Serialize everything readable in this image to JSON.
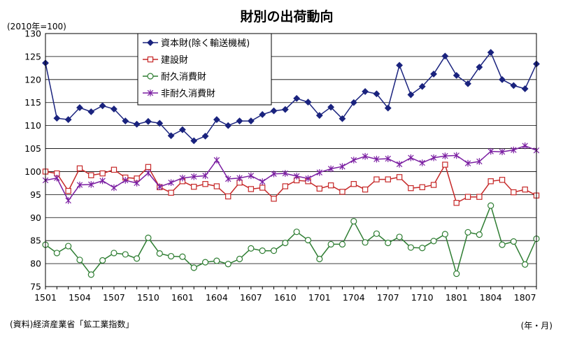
{
  "header": {
    "unit": "(2010年=100)",
    "title": "財別の出荷動向"
  },
  "footer": {
    "source": "(資料)経済産業省「鉱工業指数」",
    "axis_unit": "(年・月)"
  },
  "colors": {
    "capital": "#1a237e",
    "construction": "#c62828",
    "durable": "#2e7d32",
    "nondurable": "#7b1fa2",
    "grid": "#000000"
  },
  "chart_data": {
    "type": "line",
    "title": "財別の出荷動向",
    "ylabel": "(2010年=100)",
    "xlabel": "(年・月)",
    "ylim": [
      75,
      130
    ],
    "yticks": [
      75,
      80,
      85,
      90,
      95,
      100,
      105,
      110,
      115,
      120,
      125,
      130
    ],
    "grid": true,
    "legend_position": "top-center",
    "x_tick_labels": [
      "1501",
      "1504",
      "1507",
      "1510",
      "1601",
      "1604",
      "1607",
      "1610",
      "1701",
      "1704",
      "1707",
      "1710",
      "1801",
      "1804",
      "1807"
    ],
    "x": [
      "1501",
      "1502",
      "1503",
      "1504",
      "1505",
      "1506",
      "1507",
      "1508",
      "1509",
      "1510",
      "1511",
      "1512",
      "1601",
      "1602",
      "1603",
      "1604",
      "1605",
      "1606",
      "1607",
      "1608",
      "1609",
      "1610",
      "1611",
      "1612",
      "1701",
      "1702",
      "1703",
      "1704",
      "1705",
      "1706",
      "1707",
      "1708",
      "1709",
      "1710",
      "1711",
      "1712",
      "1801",
      "1802",
      "1803",
      "1804",
      "1805",
      "1806",
      "1807",
      "1808"
    ],
    "series": [
      {
        "name": "資本財(除く輸送機械)",
        "marker": "diamond",
        "values": [
          123.6,
          111.6,
          111.3,
          113.9,
          113.0,
          114.3,
          113.6,
          111.0,
          110.3,
          110.9,
          110.5,
          107.8,
          109.1,
          106.7,
          107.7,
          111.3,
          110.0,
          111.0,
          111.0,
          112.4,
          113.2,
          113.5,
          115.9,
          115.1,
          112.2,
          114.0,
          111.5,
          115.0,
          117.4,
          116.9,
          113.8,
          123.1,
          116.7,
          118.5,
          121.2,
          125.1,
          120.9,
          119.1,
          122.7,
          125.9,
          120.0,
          118.7,
          118.0,
          123.4
        ]
      },
      {
        "name": "建設財",
        "marker": "square",
        "values": [
          100.0,
          99.6,
          95.8,
          100.7,
          99.2,
          99.6,
          100.4,
          98.7,
          98.5,
          101.0,
          96.6,
          95.4,
          97.9,
          96.7,
          97.3,
          96.8,
          94.6,
          97.6,
          96.2,
          96.5,
          94.1,
          96.8,
          98.1,
          97.9,
          96.3,
          97.0,
          95.6,
          97.3,
          96.1,
          98.3,
          98.3,
          98.8,
          96.4,
          96.6,
          97.1,
          101.5,
          93.2,
          94.5,
          94.5,
          97.9,
          98.2,
          95.5,
          96.1,
          94.8
        ]
      },
      {
        "name": "耐久消費財",
        "marker": "circle",
        "values": [
          84.1,
          82.3,
          83.8,
          80.8,
          77.6,
          80.7,
          82.3,
          82.0,
          81.1,
          85.6,
          82.2,
          81.6,
          81.5,
          79.1,
          80.3,
          80.6,
          79.9,
          81.0,
          83.3,
          82.8,
          82.8,
          84.5,
          86.9,
          85.1,
          81.0,
          84.2,
          84.2,
          89.2,
          84.6,
          86.5,
          84.5,
          85.8,
          83.5,
          83.4,
          84.9,
          86.4,
          77.8,
          86.8,
          86.3,
          92.6,
          84.1,
          84.8,
          79.8,
          85.4
        ]
      },
      {
        "name": "非耐久消費財",
        "marker": "star",
        "values": [
          98.1,
          98.6,
          93.7,
          97.1,
          97.2,
          98.0,
          96.5,
          98.1,
          97.5,
          99.7,
          96.7,
          97.6,
          98.6,
          98.9,
          99.1,
          102.5,
          98.4,
          98.6,
          99.1,
          97.8,
          99.5,
          99.6,
          99.0,
          98.5,
          99.8,
          100.6,
          101.1,
          102.5,
          103.3,
          102.7,
          102.8,
          101.6,
          103.0,
          101.9,
          103.0,
          103.4,
          103.5,
          101.8,
          102.2,
          104.4,
          104.3,
          104.7,
          105.6,
          104.6
        ]
      }
    ]
  }
}
